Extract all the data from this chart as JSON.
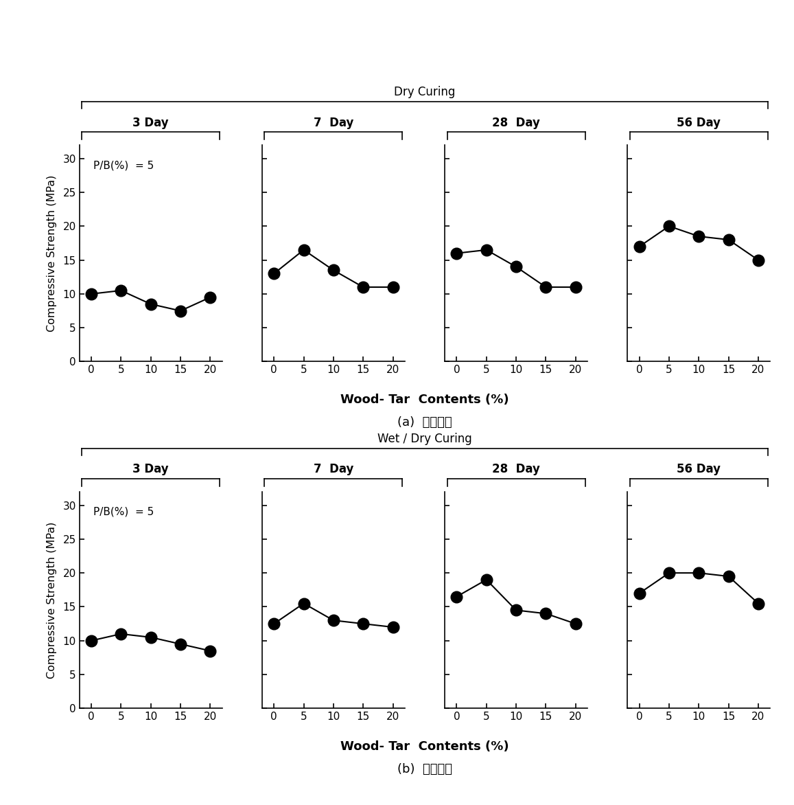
{
  "top_title": "Dry Curing",
  "bottom_title": "Wet / Dry Curing",
  "caption_a": "(a)  기중양생",
  "caption_b": "(b)  습윤양생",
  "pb_label": "P/B(%)  = 5",
  "xlabel": "Wood- Tar  Contents (%)",
  "ylabel": "Compressive Strength (MPa)",
  "day_labels": [
    "3 Day",
    "7  Day",
    "28  Day",
    "56 Day"
  ],
  "x_ticks": [
    0,
    5,
    10,
    15,
    20
  ],
  "ylim": [
    0,
    32
  ],
  "yticks": [
    0,
    5,
    10,
    15,
    20,
    25,
    30
  ],
  "dry_data": {
    "3day": [
      10.0,
      10.5,
      8.5,
      7.5,
      9.5
    ],
    "7day": [
      13.0,
      16.5,
      13.5,
      11.0,
      11.0
    ],
    "28day": [
      16.0,
      16.5,
      14.0,
      11.0,
      11.0
    ],
    "56day": [
      17.0,
      20.0,
      18.5,
      18.0,
      15.0
    ]
  },
  "wet_data": {
    "3day": [
      10.0,
      11.0,
      10.5,
      9.5,
      8.5
    ],
    "7day": [
      12.5,
      15.5,
      13.0,
      12.5,
      12.0
    ],
    "28day": [
      16.5,
      19.0,
      14.5,
      14.0,
      12.5
    ],
    "56day": [
      17.0,
      20.0,
      20.0,
      19.5,
      15.5
    ]
  },
  "marker_size": 12,
  "line_width": 1.5
}
